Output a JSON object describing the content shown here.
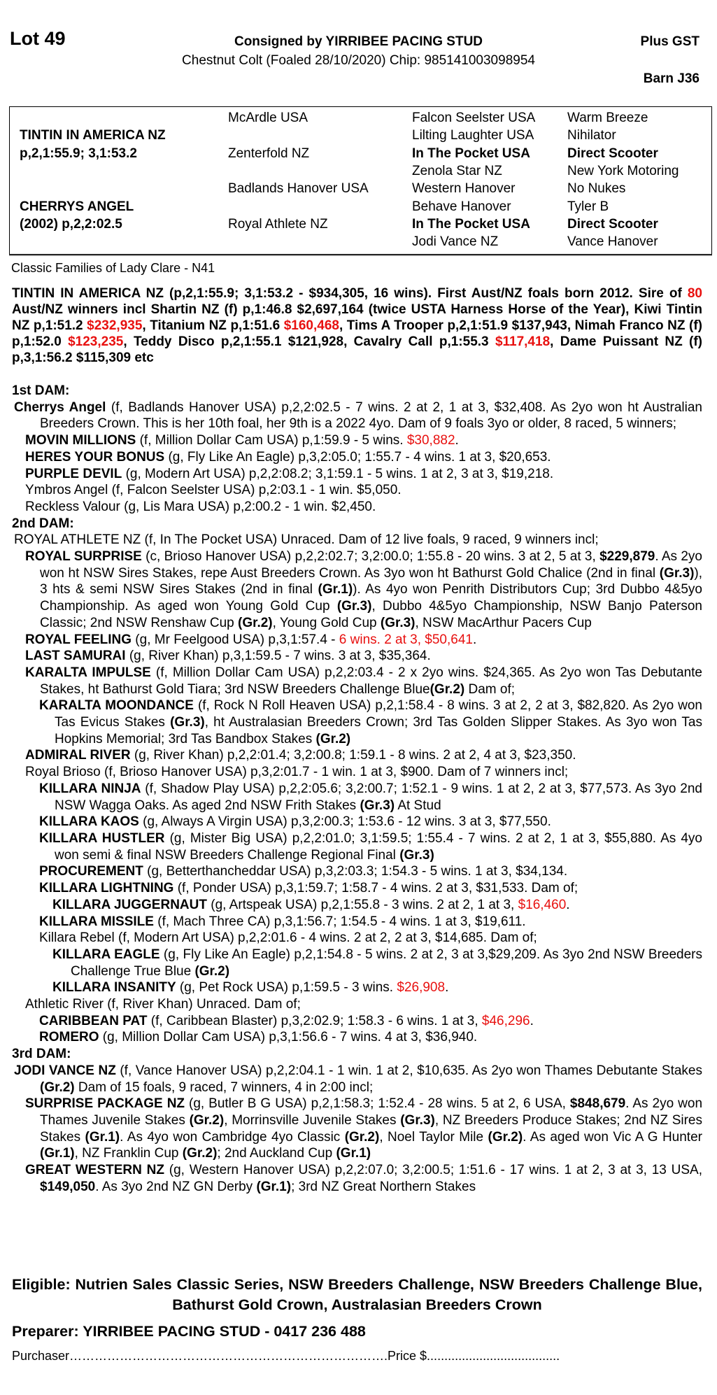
{
  "header": {
    "lot": "Lot 49",
    "consigned": "Consigned by YIRRIBEE PACING STUD",
    "plus_gst": "Plus GST",
    "description": "Chestnut Colt (Foaled 28/10/2020) Chip: 985141003098954",
    "barn": "Barn J36"
  },
  "pedigree": {
    "rows": [
      [
        "",
        "McArdle USA",
        "Falcon Seelster USA",
        "Warm Breeze"
      ],
      [
        "TINTIN IN AMERICA NZ",
        "",
        "Lilting Laughter USA",
        "Nihilator"
      ],
      [
        "p,2,1:55.9; 3,1:53.2",
        "Zenterfold NZ",
        "In The Pocket USA",
        "Direct Scooter"
      ],
      [
        "",
        "",
        "Zenola Star NZ",
        "New York Motoring"
      ],
      [
        "",
        "Badlands Hanover USA",
        "Western Hanover",
        "No Nukes"
      ],
      [
        "CHERRYS ANGEL",
        "",
        "Behave Hanover",
        "Tyler B"
      ],
      [
        "(2002) p,2,2:02.5",
        "Royal Athlete NZ",
        "In The Pocket USA",
        "Direct Scooter"
      ],
      [
        "",
        "",
        "Jodi Vance NZ",
        "Vance Hanover"
      ]
    ],
    "bold_cells": [
      [
        1,
        0
      ],
      [
        2,
        0
      ],
      [
        5,
        0
      ],
      [
        6,
        0
      ],
      [
        2,
        2
      ],
      [
        2,
        3
      ],
      [
        6,
        2
      ],
      [
        6,
        3
      ]
    ]
  },
  "family": "Classic Families of Lady Clare - N41",
  "colors": {
    "highlight": "#e8100f",
    "text": "#000000"
  },
  "blocks": [
    {
      "type": "sire",
      "segs": [
        {
          "t": "TINTIN IN AMERICA NZ (p,2,1:55.9; 3,1:53.2 - $934,305, 16 wins). First Aust/NZ foals born 2012. Sire of ",
          "s": "b"
        },
        {
          "t": "80",
          "s": "br"
        },
        {
          "t": " Aust/NZ winners incl Shartin NZ (f) p,1:46.8 $2,697,164 (twice USTA Harness Horse of the Year), Kiwi Tintin NZ p,1:51.2 ",
          "s": "b"
        },
        {
          "t": "$232,935",
          "s": "br"
        },
        {
          "t": ", Titanium NZ p,1:51.6 ",
          "s": "b"
        },
        {
          "t": "$160,468",
          "s": "br"
        },
        {
          "t": ", Tims A Trooper p,2,1:51.9 $137,943, Nimah Franco NZ (f) p,1:52.0 ",
          "s": "b"
        },
        {
          "t": "$123,235",
          "s": "br"
        },
        {
          "t": ", Teddy Disco p,2,1:55.1 $121,928, Cavalry Call p,1:55.3 ",
          "s": "b"
        },
        {
          "t": "$117,418",
          "s": "br"
        },
        {
          "t": ", Dame Puissant NZ (f) p,3,1:56.2 $115,309 etc",
          "s": "b"
        }
      ]
    },
    {
      "type": "heading",
      "segs": [
        {
          "t": "1st DAM:",
          "s": "b"
        }
      ]
    },
    {
      "type": "entry",
      "level": 0,
      "segs": [
        {
          "t": "Cherrys Angel",
          "s": "b"
        },
        {
          "t": " (f, Badlands Hanover USA) p,2,2:02.5 - 7 wins. 2 at 2, 1 at 3, $32,408. As 2yo won ht Australian Breeders Crown. This is her 10th foal, her 9th is a 2022 4yo. Dam of 9 foals 3yo or older, 8 raced, 5 winners;",
          "s": "n"
        }
      ]
    },
    {
      "type": "entry",
      "level": 1,
      "segs": [
        {
          "t": "MOVIN MILLIONS",
          "s": "b"
        },
        {
          "t": " (f, Million Dollar Cam USA) p,1:59.9 - 5 wins. ",
          "s": "n"
        },
        {
          "t": "$30,882",
          "s": "r"
        },
        {
          "t": ".",
          "s": "n"
        }
      ]
    },
    {
      "type": "entry",
      "level": 1,
      "segs": [
        {
          "t": "HERES YOUR BONUS",
          "s": "b"
        },
        {
          "t": " (g, Fly Like An Eagle) p,3,2:05.0; 1:55.7 - 4 wins. 1 at 3, $20,653.",
          "s": "n"
        }
      ]
    },
    {
      "type": "entry",
      "level": 1,
      "segs": [
        {
          "t": "PURPLE DEVIL",
          "s": "b"
        },
        {
          "t": " (g, Modern Art USA) p,2,2:08.2; 3,1:59.1 - 5 wins. 1 at 2, 3 at 3, $19,218.",
          "s": "n"
        }
      ]
    },
    {
      "type": "entry",
      "level": 1,
      "segs": [
        {
          "t": "Ymbros Angel (f, Falcon Seelster USA) p,2:03.1 - 1 win. $5,050.",
          "s": "n"
        }
      ]
    },
    {
      "type": "entry",
      "level": 1,
      "segs": [
        {
          "t": "Reckless Valour (g, Lis Mara USA) p,2:00.2 - 1 win. $2,450.",
          "s": "n"
        }
      ]
    },
    {
      "type": "heading",
      "segs": [
        {
          "t": "2nd DAM:",
          "s": "b"
        }
      ]
    },
    {
      "type": "entry",
      "level": 0,
      "segs": [
        {
          "t": "ROYAL ATHLETE NZ (f, In The Pocket USA) Unraced. Dam of 12 live foals, 9 raced, 9 winners incl;",
          "s": "n"
        }
      ]
    },
    {
      "type": "entry",
      "level": 1,
      "segs": [
        {
          "t": "ROYAL SURPRISE",
          "s": "b"
        },
        {
          "t": " (c, Brioso Hanover USA) p,2,2:02.7; 3,2:00.0; 1:55.8 - 20 wins. 3 at 2, 5 at 3, ",
          "s": "n"
        },
        {
          "t": "$229,879",
          "s": "b"
        },
        {
          "t": ". As 2yo won ht NSW Sires Stakes, repe Aust Breeders Crown. As 3yo won ht Bathurst Gold Chalice (2nd in final ",
          "s": "n"
        },
        {
          "t": "(Gr.3)",
          "s": "b"
        },
        {
          "t": "), 3 hts & semi NSW Sires Stakes (2nd in final ",
          "s": "n"
        },
        {
          "t": "(Gr.1)",
          "s": "b"
        },
        {
          "t": "). As 4yo won Penrith Distributors Cup; 3rd Dubbo 4&5yo Championship. As aged won Young Gold Cup ",
          "s": "n"
        },
        {
          "t": "(Gr.3)",
          "s": "b"
        },
        {
          "t": ", Dubbo 4&5yo Championship, NSW Banjo Paterson Classic; 2nd NSW Renshaw Cup ",
          "s": "n"
        },
        {
          "t": "(Gr.2)",
          "s": "b"
        },
        {
          "t": ", Young Gold Cup ",
          "s": "n"
        },
        {
          "t": "(Gr.3)",
          "s": "b"
        },
        {
          "t": ", NSW MacArthur Pacers Cup",
          "s": "n"
        }
      ]
    },
    {
      "type": "entry",
      "level": 1,
      "segs": [
        {
          "t": "ROYAL FEELING",
          "s": "b"
        },
        {
          "t": " (g, Mr Feelgood USA) p,3,1:57.4 - ",
          "s": "n"
        },
        {
          "t": "6 wins. 2 at 3, $50,641",
          "s": "r"
        },
        {
          "t": ".",
          "s": "n"
        }
      ]
    },
    {
      "type": "entry",
      "level": 1,
      "segs": [
        {
          "t": "LAST SAMURAI",
          "s": "b"
        },
        {
          "t": " (g, River Khan) p,3,1:59.5 - 7 wins. 3 at 3, $35,364.",
          "s": "n"
        }
      ]
    },
    {
      "type": "entry",
      "level": 1,
      "segs": [
        {
          "t": "KARALTA IMPULSE",
          "s": "b"
        },
        {
          "t": " (f, Million Dollar Cam USA) p,2,2:03.4 - 2 x 2yo wins. $24,365. As 2yo won Tas Debutante Stakes, ht Bathurst Gold Tiara; 3rd NSW Breeders Challenge Blue",
          "s": "n"
        },
        {
          "t": "(Gr.2)",
          "s": "b"
        },
        {
          "t": " Dam of;",
          "s": "n"
        }
      ]
    },
    {
      "type": "entry",
      "level": 2,
      "segs": [
        {
          "t": "KARALTA MOONDANCE",
          "s": "b"
        },
        {
          "t": " (f, Rock N Roll Heaven USA) p,2,1:58.4 - 8 wins. 3 at 2, 2 at 3, $82,820. As 2yo won Tas Evicus Stakes ",
          "s": "n"
        },
        {
          "t": "(Gr.3)",
          "s": "b"
        },
        {
          "t": ", ht Australasian Breeders Crown; 3rd Tas Golden Slipper Stakes. As 3yo won Tas Hopkins Memorial; 3rd Tas Bandbox Stakes ",
          "s": "n"
        },
        {
          "t": "(Gr.2)",
          "s": "b"
        }
      ]
    },
    {
      "type": "entry",
      "level": 1,
      "segs": [
        {
          "t": "ADMIRAL RIVER",
          "s": "b"
        },
        {
          "t": " (g, River Khan) p,2,2:01.4; 3,2:00.8; 1:59.1 - 8 wins. 2 at 2, 4 at 3, $23,350.",
          "s": "n"
        }
      ]
    },
    {
      "type": "entry",
      "level": 1,
      "segs": [
        {
          "t": "Royal Brioso (f, Brioso Hanover USA) p,3,2:01.7 - 1 win. 1 at 3, $900. Dam of 7 winners incl;",
          "s": "n"
        }
      ]
    },
    {
      "type": "entry",
      "level": 2,
      "segs": [
        {
          "t": "KILLARA NINJA",
          "s": "b"
        },
        {
          "t": " (f, Shadow Play USA) p,2,2:05.6; 3,2:00.7; 1:52.1 - 9 wins. 1 at 2, 2 at 3, $77,573. As 3yo 2nd NSW Wagga Oaks. As aged 2nd NSW Frith Stakes ",
          "s": "n"
        },
        {
          "t": "(Gr.3)",
          "s": "b"
        },
        {
          "t": " At Stud",
          "s": "n"
        }
      ]
    },
    {
      "type": "entry",
      "level": 2,
      "segs": [
        {
          "t": "KILLARA KAOS",
          "s": "b"
        },
        {
          "t": " (g, Always A Virgin USA) p,3,2:00.3; 1:53.6 - 12 wins. 3 at 3, $77,550.",
          "s": "n"
        }
      ]
    },
    {
      "type": "entry",
      "level": 2,
      "segs": [
        {
          "t": "KILLARA HUSTLER",
          "s": "b"
        },
        {
          "t": " (g, Mister Big USA) p,2,2:01.0; 3,1:59.5; 1:55.4 - 7 wins. 2 at 2, 1 at 3, $55,880. As 4yo won semi & final NSW Breeders Challenge Regional Final ",
          "s": "n"
        },
        {
          "t": "(Gr.3)",
          "s": "b"
        }
      ]
    },
    {
      "type": "entry",
      "level": 2,
      "segs": [
        {
          "t": "PROCUREMENT",
          "s": "b"
        },
        {
          "t": " (g, Betterthancheddar USA) p,3,2:03.3; 1:54.3 - 5 wins. 1 at 3, $34,134.",
          "s": "n"
        }
      ]
    },
    {
      "type": "entry",
      "level": 2,
      "segs": [
        {
          "t": "KILLARA LIGHTNING",
          "s": "b"
        },
        {
          "t": " (f, Ponder USA) p,3,1:59.7; 1:58.7 - 4 wins. 2 at 3, $31,533. Dam of;",
          "s": "n"
        }
      ]
    },
    {
      "type": "entry",
      "level": 3,
      "segs": [
        {
          "t": "KILLARA JUGGERNAUT",
          "s": "b"
        },
        {
          "t": " (g, Artspeak USA) p,2,1:55.8 - 3 wins. 2 at 2, 1 at 3, ",
          "s": "n"
        },
        {
          "t": "$16,460",
          "s": "r"
        },
        {
          "t": ".",
          "s": "n"
        }
      ]
    },
    {
      "type": "entry",
      "level": 2,
      "segs": [
        {
          "t": "KILLARA MISSILE",
          "s": "b"
        },
        {
          "t": " (f, Mach Three CA) p,3,1:56.7; 1:54.5 - 4 wins. 1 at 3, $19,611.",
          "s": "n"
        }
      ]
    },
    {
      "type": "entry",
      "level": 2,
      "segs": [
        {
          "t": "Killara Rebel (f, Modern Art USA) p,2,2:01.6 - 4 wins. 2 at 2, 2 at 3, $14,685. Dam of;",
          "s": "n"
        }
      ]
    },
    {
      "type": "entry",
      "level": 3,
      "segs": [
        {
          "t": "KILLARA EAGLE",
          "s": "b"
        },
        {
          "t": " (g, Fly Like An Eagle) p,2,1:54.8 - 5 wins. 2 at 2, 3 at 3,$29,209. As 3yo 2nd NSW Breeders Challenge True Blue ",
          "s": "n"
        },
        {
          "t": "(Gr.2)",
          "s": "b"
        }
      ]
    },
    {
      "type": "entry",
      "level": 3,
      "segs": [
        {
          "t": "KILLARA INSANITY",
          "s": "b"
        },
        {
          "t": " (g, Pet Rock USA) p,1:59.5 - 3 wins. ",
          "s": "n"
        },
        {
          "t": "$26,908",
          "s": "r"
        },
        {
          "t": ".",
          "s": "n"
        }
      ]
    },
    {
      "type": "entry",
      "level": 1,
      "segs": [
        {
          "t": "Athletic River (f, River Khan) Unraced. Dam of;",
          "s": "n"
        }
      ]
    },
    {
      "type": "entry",
      "level": 2,
      "segs": [
        {
          "t": "CARIBBEAN PAT",
          "s": "b"
        },
        {
          "t": " (f, Caribbean Blaster) p,3,2:02.9; 1:58.3 - 6 wins. 1 at 3, ",
          "s": "n"
        },
        {
          "t": "$46,296",
          "s": "r"
        },
        {
          "t": ".",
          "s": "n"
        }
      ]
    },
    {
      "type": "entry",
      "level": 2,
      "segs": [
        {
          "t": "ROMERO",
          "s": "b"
        },
        {
          "t": " (g, Million Dollar Cam USA) p,3,1:56.6 - 7 wins. 4 at 3, $36,940.",
          "s": "n"
        }
      ]
    },
    {
      "type": "heading",
      "segs": [
        {
          "t": "3rd DAM:",
          "s": "b"
        }
      ]
    },
    {
      "type": "entry",
      "level": 0,
      "segs": [
        {
          "t": "JODI VANCE NZ",
          "s": "b"
        },
        {
          "t": " (f, Vance Hanover USA) p,2,2:04.1 - 1 win. 1 at 2, $10,635. As 2yo won Thames Debutante Stakes ",
          "s": "n"
        },
        {
          "t": "(Gr.2)",
          "s": "b"
        },
        {
          "t": " Dam of 15 foals, 9 raced, 7 winners, 4 in 2:00 incl;",
          "s": "n"
        }
      ]
    },
    {
      "type": "entry",
      "level": 1,
      "segs": [
        {
          "t": "SURPRISE PACKAGE NZ",
          "s": "b"
        },
        {
          "t": " (g, Butler B G USA) p,2,1:58.3; 1:52.4 - 28 wins. 5 at 2, 6 USA, ",
          "s": "n"
        },
        {
          "t": "$848,679",
          "s": "b"
        },
        {
          "t": ". As 2yo won Thames Juvenile Stakes ",
          "s": "n"
        },
        {
          "t": "(Gr.2)",
          "s": "b"
        },
        {
          "t": ", Morrinsville Juvenile Stakes ",
          "s": "n"
        },
        {
          "t": "(Gr.3)",
          "s": "b"
        },
        {
          "t": ", NZ Breeders Produce Stakes; 2nd NZ Sires Stakes ",
          "s": "n"
        },
        {
          "t": "(Gr.1)",
          "s": "b"
        },
        {
          "t": ". As 4yo won Cambridge 4yo Classic ",
          "s": "n"
        },
        {
          "t": "(Gr.2)",
          "s": "b"
        },
        {
          "t": ", Noel Taylor Mile ",
          "s": "n"
        },
        {
          "t": "(Gr.2)",
          "s": "b"
        },
        {
          "t": ". As aged won Vic A G Hunter ",
          "s": "n"
        },
        {
          "t": "(Gr.1)",
          "s": "b"
        },
        {
          "t": ", NZ Franklin Cup ",
          "s": "n"
        },
        {
          "t": "(Gr.2)",
          "s": "b"
        },
        {
          "t": "; 2nd Auckland Cup ",
          "s": "n"
        },
        {
          "t": "(Gr.1)",
          "s": "b"
        }
      ]
    },
    {
      "type": "entry",
      "level": 1,
      "segs": [
        {
          "t": "GREAT WESTERN NZ",
          "s": "b"
        },
        {
          "t": " (g, Western Hanover USA) p,2,2:07.0; 3,2:00.5; 1:51.6 - 17 wins. 1 at 2, 3 at 3, 13 USA, ",
          "s": "n"
        },
        {
          "t": "$149,050",
          "s": "b"
        },
        {
          "t": ". As 3yo 2nd NZ GN Derby ",
          "s": "n"
        },
        {
          "t": "(Gr.1)",
          "s": "b"
        },
        {
          "t": "; 3rd NZ Great Northern Stakes",
          "s": "n"
        }
      ]
    }
  ],
  "footer": {
    "eligible": "Eligible: Nutrien Sales Classic Series, NSW Breeders Challenge, NSW Breeders Challenge Blue, Bathurst Gold Crown, Australasian Breeders Crown",
    "preparer": "Preparer: YIRRIBEE PACING STUD - 0417 236 488",
    "purchaser": "Purchaser………………………………………………………………….Price $......................................"
  }
}
